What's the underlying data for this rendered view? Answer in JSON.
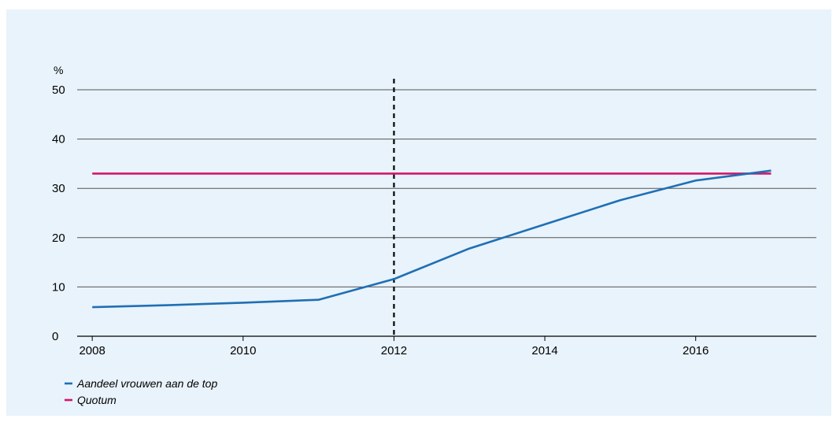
{
  "chart_data": {
    "type": "line",
    "y_unit": "%",
    "ylim": [
      0,
      50
    ],
    "y_ticks": [
      0,
      10,
      20,
      30,
      40,
      50
    ],
    "xlim": [
      2007.8,
      2017.6
    ],
    "x_ticks": [
      2008,
      2010,
      2012,
      2014,
      2016
    ],
    "grid": true,
    "legend_position": "bottom-left",
    "series": [
      {
        "name": "Aandeel vrouwen aan de top",
        "color": "#1f6fb5",
        "x": [
          2008,
          2009,
          2010,
          2011,
          2012,
          2013,
          2014,
          2015,
          2016,
          2017
        ],
        "values": [
          5.9,
          6.3,
          6.8,
          7.4,
          11.6,
          17.8,
          22.7,
          27.6,
          31.6,
          33.6
        ]
      },
      {
        "name": "Quotum",
        "color": "#d6156c",
        "x": [
          2008,
          2017
        ],
        "values": [
          33,
          33
        ]
      }
    ],
    "annotations": [
      {
        "type": "vertical-dashed-line",
        "x": 2012
      }
    ]
  }
}
